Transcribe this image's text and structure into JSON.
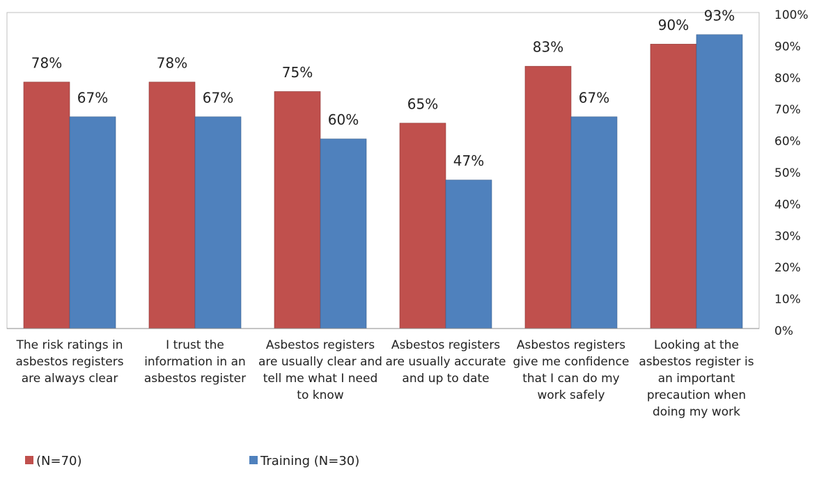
{
  "chart_data": {
    "type": "bar",
    "categories": [
      "The risk ratings in asbestos registers are always clear",
      "I trust the information in an asbestos register",
      "Asbestos registers are usually clear and tell me what I need to know",
      "Asbestos registers are usually accurate and up to date",
      "Asbestos registers give me confidence that I can do my work safely",
      "Looking at the asbestos register is an important precaution when doing my work"
    ],
    "series": [
      {
        "name": "(N=70)",
        "color": "#c0504d",
        "values": [
          78,
          78,
          75,
          65,
          83,
          90
        ],
        "value_labels": [
          "78%",
          "78%",
          "75%",
          "65%",
          "83%",
          "90%"
        ]
      },
      {
        "name": "Training (N=30)",
        "color": "#4f81bd",
        "values": [
          67,
          67,
          60,
          47,
          67,
          93
        ],
        "value_labels": [
          "67%",
          "67%",
          "60%",
          "47%",
          "67%",
          "93%"
        ]
      }
    ],
    "ylim": [
      0,
      100
    ],
    "yticks": [
      {
        "value": 0,
        "label": "0%"
      },
      {
        "value": 10,
        "label": "10%"
      },
      {
        "value": 20,
        "label": "20%"
      },
      {
        "value": 30,
        "label": "30%"
      },
      {
        "value": 40,
        "label": "40%"
      },
      {
        "value": 50,
        "label": "50%"
      },
      {
        "value": 60,
        "label": "60%"
      },
      {
        "value": 70,
        "label": "70%"
      },
      {
        "value": 80,
        "label": "80%"
      },
      {
        "value": 90,
        "label": "90%"
      },
      {
        "value": 100,
        "label": "100%"
      }
    ],
    "y_axis_side": "right",
    "grid": false
  }
}
